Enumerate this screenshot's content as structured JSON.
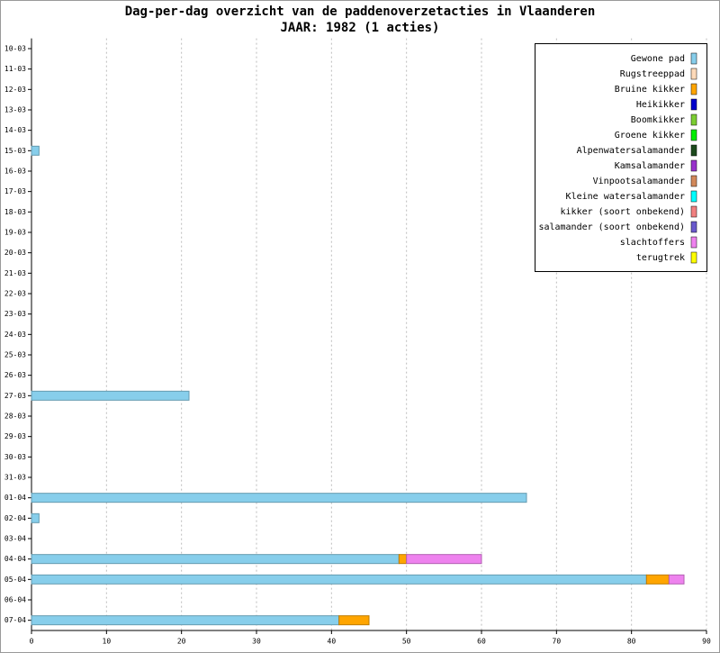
{
  "chart_data": {
    "type": "stacked-barh",
    "title": "Dag-per-dag overzicht van de paddenoverzetacties in Vlaanderen",
    "subtitle": "JAAR: 1982 (1 acties)",
    "categories": [
      "10-03",
      "11-03",
      "12-03",
      "13-03",
      "14-03",
      "15-03",
      "16-03",
      "17-03",
      "18-03",
      "19-03",
      "20-03",
      "21-03",
      "22-03",
      "23-03",
      "24-03",
      "25-03",
      "26-03",
      "27-03",
      "28-03",
      "29-03",
      "30-03",
      "31-03",
      "01-04",
      "02-04",
      "03-04",
      "04-04",
      "05-04",
      "06-04",
      "07-04"
    ],
    "series": [
      {
        "name": "Gewone pad",
        "color": "#87ceeb",
        "values": [
          0,
          0,
          0,
          0,
          0,
          1,
          0,
          0,
          0,
          0,
          0,
          0,
          0,
          0,
          0,
          0,
          0,
          21,
          0,
          0,
          0,
          0,
          66,
          1,
          0,
          49,
          82,
          0,
          41
        ]
      },
      {
        "name": "Rugstreeppad",
        "color": "#ffdab9",
        "values": [
          0,
          0,
          0,
          0,
          0,
          0,
          0,
          0,
          0,
          0,
          0,
          0,
          0,
          0,
          0,
          0,
          0,
          0,
          0,
          0,
          0,
          0,
          0,
          0,
          0,
          0,
          0,
          0,
          0
        ]
      },
      {
        "name": "Bruine kikker",
        "color": "#ffa500",
        "values": [
          0,
          0,
          0,
          0,
          0,
          0,
          0,
          0,
          0,
          0,
          0,
          0,
          0,
          0,
          0,
          0,
          0,
          0,
          0,
          0,
          0,
          0,
          0,
          0,
          0,
          1,
          3,
          0,
          4
        ]
      },
      {
        "name": "Heikikker",
        "color": "#0000cd",
        "values": [
          0,
          0,
          0,
          0,
          0,
          0,
          0,
          0,
          0,
          0,
          0,
          0,
          0,
          0,
          0,
          0,
          0,
          0,
          0,
          0,
          0,
          0,
          0,
          0,
          0,
          0,
          0,
          0,
          0
        ]
      },
      {
        "name": "Boomkikker",
        "color": "#7ccd32",
        "values": [
          0,
          0,
          0,
          0,
          0,
          0,
          0,
          0,
          0,
          0,
          0,
          0,
          0,
          0,
          0,
          0,
          0,
          0,
          0,
          0,
          0,
          0,
          0,
          0,
          0,
          0,
          0,
          0,
          0
        ]
      },
      {
        "name": "Groene kikker",
        "color": "#00ee00",
        "values": [
          0,
          0,
          0,
          0,
          0,
          0,
          0,
          0,
          0,
          0,
          0,
          0,
          0,
          0,
          0,
          0,
          0,
          0,
          0,
          0,
          0,
          0,
          0,
          0,
          0,
          0,
          0,
          0,
          0
        ]
      },
      {
        "name": "Alpenwatersalamander",
        "color": "#1c4a1c",
        "values": [
          0,
          0,
          0,
          0,
          0,
          0,
          0,
          0,
          0,
          0,
          0,
          0,
          0,
          0,
          0,
          0,
          0,
          0,
          0,
          0,
          0,
          0,
          0,
          0,
          0,
          0,
          0,
          0,
          0
        ]
      },
      {
        "name": "Kamsalamander",
        "color": "#9932cc",
        "values": [
          0,
          0,
          0,
          0,
          0,
          0,
          0,
          0,
          0,
          0,
          0,
          0,
          0,
          0,
          0,
          0,
          0,
          0,
          0,
          0,
          0,
          0,
          0,
          0,
          0,
          0,
          0,
          0,
          0
        ]
      },
      {
        "name": "Vinpootsalamander",
        "color": "#d2895a",
        "values": [
          0,
          0,
          0,
          0,
          0,
          0,
          0,
          0,
          0,
          0,
          0,
          0,
          0,
          0,
          0,
          0,
          0,
          0,
          0,
          0,
          0,
          0,
          0,
          0,
          0,
          0,
          0,
          0,
          0
        ]
      },
      {
        "name": "Kleine watersalamander",
        "color": "#00ffff",
        "values": [
          0,
          0,
          0,
          0,
          0,
          0,
          0,
          0,
          0,
          0,
          0,
          0,
          0,
          0,
          0,
          0,
          0,
          0,
          0,
          0,
          0,
          0,
          0,
          0,
          0,
          0,
          0,
          0,
          0
        ]
      },
      {
        "name": "kikker (soort onbekend)",
        "color": "#f08080",
        "values": [
          0,
          0,
          0,
          0,
          0,
          0,
          0,
          0,
          0,
          0,
          0,
          0,
          0,
          0,
          0,
          0,
          0,
          0,
          0,
          0,
          0,
          0,
          0,
          0,
          0,
          0,
          0,
          0,
          0
        ]
      },
      {
        "name": "salamander (soort onbekend)",
        "color": "#6a5acd",
        "values": [
          0,
          0,
          0,
          0,
          0,
          0,
          0,
          0,
          0,
          0,
          0,
          0,
          0,
          0,
          0,
          0,
          0,
          0,
          0,
          0,
          0,
          0,
          0,
          0,
          0,
          0,
          0,
          0,
          0
        ]
      },
      {
        "name": "slachtoffers",
        "color": "#ee82ee",
        "values": [
          0,
          0,
          0,
          0,
          0,
          0,
          0,
          0,
          0,
          0,
          0,
          0,
          0,
          0,
          0,
          0,
          0,
          0,
          0,
          0,
          0,
          0,
          0,
          0,
          0,
          10,
          2,
          0,
          0
        ]
      },
      {
        "name": "terugtrek",
        "color": "#ffff00",
        "values": [
          0,
          0,
          0,
          0,
          0,
          0,
          0,
          0,
          0,
          0,
          0,
          0,
          0,
          0,
          0,
          0,
          0,
          0,
          0,
          0,
          0,
          0,
          0,
          0,
          0,
          0,
          0,
          0,
          0
        ]
      }
    ],
    "xlim": [
      0,
      90
    ],
    "xticks": [
      0,
      10,
      20,
      30,
      40,
      50,
      60,
      70,
      80,
      90
    ],
    "grid": true,
    "legend": "top-right"
  }
}
